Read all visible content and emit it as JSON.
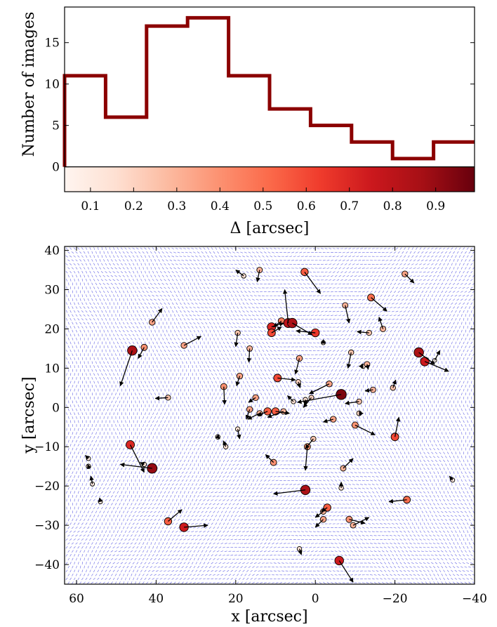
{
  "chart_data": [
    {
      "type": "histogram",
      "ylabel": "Number of images",
      "xlim": [
        0.04,
        0.99
      ],
      "ylim": [
        -3,
        19.3
      ],
      "yticks": [
        "0",
        "5",
        "10",
        "15"
      ],
      "bins": [
        {
          "x0": 0.04,
          "x1": 0.135,
          "count": 11
        },
        {
          "x0": 0.135,
          "x1": 0.23,
          "count": 6
        },
        {
          "x0": 0.23,
          "x1": 0.325,
          "count": 17
        },
        {
          "x0": 0.325,
          "x1": 0.42,
          "count": 18
        },
        {
          "x0": 0.42,
          "x1": 0.515,
          "count": 11
        },
        {
          "x0": 0.515,
          "x1": 0.61,
          "count": 7
        },
        {
          "x0": 0.61,
          "x1": 0.705,
          "count": 5
        },
        {
          "x0": 0.705,
          "x1": 0.8,
          "count": 3
        },
        {
          "x0": 0.8,
          "x1": 0.895,
          "count": 1
        },
        {
          "x0": 0.895,
          "x1": 0.99,
          "count": 3
        }
      ],
      "colorbar": {
        "label": "Δ [arcsec]",
        "ticks": [
          "0.1",
          "0.2",
          "0.3",
          "0.4",
          "0.5",
          "0.6",
          "0.7",
          "0.8",
          "0.9"
        ],
        "colormap": "Reds",
        "range": [
          0.04,
          0.99
        ]
      },
      "line_color": "#8b0000"
    },
    {
      "type": "scatter",
      "xlabel": "x [arcsec]",
      "ylabel": "y [arcsec]",
      "xlim": [
        63,
        -40
      ],
      "ylim": [
        -45,
        41
      ],
      "xticks": [
        "60",
        "40",
        "20",
        "0",
        "−20",
        "−40"
      ],
      "yticks": [
        "40",
        "30",
        "20",
        "10",
        "0",
        "−10",
        "−20",
        "−30",
        "−40"
      ],
      "background_field_color": "#4a4ae0",
      "points": [
        {
          "x": 18,
          "y": 33.5,
          "d": 0.15,
          "dx": 2,
          "dy": 1.5
        },
        {
          "x": 14,
          "y": 35,
          "d": 0.3,
          "dx": 0.6,
          "dy": -3
        },
        {
          "x": 2.7,
          "y": 34.5,
          "d": 0.55,
          "dx": -4,
          "dy": -5.5
        },
        {
          "x": -22.5,
          "y": 34,
          "d": 0.35,
          "dx": -2.3,
          "dy": -2.3
        },
        {
          "x": 41,
          "y": 21.7,
          "d": 0.35,
          "dx": -2.5,
          "dy": 3.5
        },
        {
          "x": 46,
          "y": 14.5,
          "d": 0.85,
          "dx": 3,
          "dy": -9
        },
        {
          "x": 43,
          "y": 15.3,
          "d": 0.4,
          "dx": 1.5,
          "dy": -2.8
        },
        {
          "x": 33,
          "y": 15.8,
          "d": 0.35,
          "dx": -4.3,
          "dy": 2.3
        },
        {
          "x": 19.5,
          "y": 19,
          "d": 0.25,
          "dx": 0.5,
          "dy": -3.5
        },
        {
          "x": 16.5,
          "y": 15,
          "d": 0.3,
          "dx": 0.2,
          "dy": -3.5
        },
        {
          "x": 11,
          "y": 20.5,
          "d": 0.7,
          "dx": -3,
          "dy": 1
        },
        {
          "x": 11,
          "y": 19,
          "d": 0.6,
          "dx": -2.5,
          "dy": 1.5
        },
        {
          "x": 8.5,
          "y": 22,
          "d": 0.45,
          "dx": 2,
          "dy": -1.5
        },
        {
          "x": 6.8,
          "y": 21.5,
          "d": 0.8,
          "dx": 0.9,
          "dy": 8.5
        },
        {
          "x": 5.8,
          "y": 21.5,
          "d": 0.85,
          "dx": -5,
          "dy": -3
        },
        {
          "x": 0,
          "y": 19,
          "d": 0.65,
          "dx": 4.8,
          "dy": 0.5
        },
        {
          "x": -7.5,
          "y": 26,
          "d": 0.3,
          "dx": -1,
          "dy": -4.5
        },
        {
          "x": -14,
          "y": 28,
          "d": 0.5,
          "dx": -4,
          "dy": -3.5
        },
        {
          "x": -13.5,
          "y": 19,
          "d": 0.25,
          "dx": 3,
          "dy": 0.3
        },
        {
          "x": -17,
          "y": 20,
          "d": 0.3,
          "dx": 1,
          "dy": 3
        },
        {
          "x": -2,
          "y": 16.5,
          "d": 0.1,
          "dx": 0,
          "dy": 0.8
        },
        {
          "x": -9,
          "y": 14,
          "d": 0.25,
          "dx": 0.8,
          "dy": -4
        },
        {
          "x": -26,
          "y": 14,
          "d": 0.85,
          "dx": -4,
          "dy": -3
        },
        {
          "x": -27.5,
          "y": 11.7,
          "d": 0.75,
          "dx": -6,
          "dy": -2.5
        },
        {
          "x": -30,
          "y": 12,
          "d": 0.05,
          "dx": -1.3,
          "dy": 2.5
        },
        {
          "x": -12,
          "y": 10.5,
          "d": 0.15,
          "dx": 1,
          "dy": 0
        },
        {
          "x": -13,
          "y": 11,
          "d": 0.3,
          "dx": -0.3,
          "dy": -1.3
        },
        {
          "x": 19,
          "y": 8,
          "d": 0.35,
          "dx": 0.8,
          "dy": -2.5
        },
        {
          "x": 23,
          "y": 5.3,
          "d": 0.4,
          "dx": -0.2,
          "dy": -4.5
        },
        {
          "x": 15,
          "y": 2.5,
          "d": 0.35,
          "dx": 1.8,
          "dy": -1.2
        },
        {
          "x": 37,
          "y": 2.5,
          "d": 0.25,
          "dx": 3.2,
          "dy": -0.2
        },
        {
          "x": 9.5,
          "y": 7.5,
          "d": 0.6,
          "dx": -4.5,
          "dy": -0.5
        },
        {
          "x": 4,
          "y": 12.5,
          "d": 0.35,
          "dx": 1,
          "dy": -4
        },
        {
          "x": 4.3,
          "y": 6.5,
          "d": 0.2,
          "dx": -0.5,
          "dy": -1.5
        },
        {
          "x": -3.5,
          "y": 6,
          "d": 0.35,
          "dx": 5,
          "dy": -2.5
        },
        {
          "x": -14.5,
          "y": 4.5,
          "d": 0.3,
          "dx": 2,
          "dy": -0.3
        },
        {
          "x": -19.5,
          "y": 5,
          "d": 0.25,
          "dx": -0.7,
          "dy": 2
        },
        {
          "x": 5.5,
          "y": 1.5,
          "d": 0.15,
          "dx": 1.5,
          "dy": 1.5
        },
        {
          "x": 2.5,
          "y": 2,
          "d": 0.15,
          "dx": 0,
          "dy": -1.5
        },
        {
          "x": 1,
          "y": 2.5,
          "d": 0.2,
          "dx": 2,
          "dy": -2.5
        },
        {
          "x": -6.5,
          "y": 3.3,
          "d": 0.95,
          "dx": 11,
          "dy": -2
        },
        {
          "x": -11,
          "y": 1.5,
          "d": 0.25,
          "dx": 3.5,
          "dy": -0.5
        },
        {
          "x": 16.5,
          "y": -0.5,
          "d": 0.35,
          "dx": 0.8,
          "dy": -2.5
        },
        {
          "x": 14,
          "y": -1.5,
          "d": 0.3,
          "dx": 3,
          "dy": -1.5
        },
        {
          "x": 12,
          "y": -1,
          "d": 0.55,
          "dx": 2.5,
          "dy": -1
        },
        {
          "x": 10,
          "y": -1,
          "d": 0.55,
          "dx": -3.5,
          "dy": -0.5
        },
        {
          "x": 8,
          "y": -1,
          "d": 0.3,
          "dx": 4,
          "dy": -1.5
        },
        {
          "x": -11,
          "y": -1.5,
          "d": 0.2,
          "dx": -1,
          "dy": 0
        },
        {
          "x": -4.5,
          "y": -3,
          "d": 0.35,
          "dx": 2.5,
          "dy": -0.7
        },
        {
          "x": -10,
          "y": -4.5,
          "d": 0.4,
          "dx": -5,
          "dy": -2.5
        },
        {
          "x": -20,
          "y": -7.5,
          "d": 0.6,
          "dx": -1,
          "dy": 5
        },
        {
          "x": 19.5,
          "y": -5.5,
          "d": 0.15,
          "dx": -0.5,
          "dy": -2.5
        },
        {
          "x": 24.5,
          "y": -7.5,
          "d": 0.15,
          "dx": -0.5,
          "dy": -0.5
        },
        {
          "x": 22.5,
          "y": -10,
          "d": 0.15,
          "dx": 0.6,
          "dy": 1.5
        },
        {
          "x": 0.5,
          "y": -8,
          "d": 0.25,
          "dx": 2,
          "dy": -2.5
        },
        {
          "x": 2,
          "y": -10,
          "d": 0.4,
          "dx": 0.5,
          "dy": -6
        },
        {
          "x": 10.5,
          "y": -14,
          "d": 0.4,
          "dx": 2,
          "dy": 2
        },
        {
          "x": 46.5,
          "y": -9.5,
          "d": 0.7,
          "dx": -3.5,
          "dy": -7
        },
        {
          "x": 41,
          "y": -15.5,
          "d": 0.9,
          "dx": 8,
          "dy": 1
        },
        {
          "x": 43,
          "y": -14.5,
          "d": 0.15,
          "dx": 1,
          "dy": 0.5
        },
        {
          "x": -7,
          "y": -15.5,
          "d": 0.3,
          "dx": -2.5,
          "dy": 2.5
        },
        {
          "x": 57,
          "y": -13,
          "d": 0.1,
          "dx": 0.8,
          "dy": 0.8
        },
        {
          "x": 57,
          "y": -15,
          "d": 0.15,
          "dx": 0.2,
          "dy": 0.5
        },
        {
          "x": 56,
          "y": -19.5,
          "d": 0.1,
          "dx": 0.4,
          "dy": 2
        },
        {
          "x": 54,
          "y": -24,
          "d": 0.1,
          "dx": 0.2,
          "dy": 1
        },
        {
          "x": 2.5,
          "y": -21,
          "d": 0.85,
          "dx": 8,
          "dy": -1
        },
        {
          "x": -6.5,
          "y": -20.5,
          "d": 0.15,
          "dx": 0,
          "dy": 1.5
        },
        {
          "x": -23,
          "y": -23.5,
          "d": 0.5,
          "dx": 4.5,
          "dy": -0.5
        },
        {
          "x": -34.5,
          "y": -18.5,
          "d": 0.1,
          "dx": 0.8,
          "dy": 1
        },
        {
          "x": 37,
          "y": -29,
          "d": 0.55,
          "dx": -3.5,
          "dy": 3
        },
        {
          "x": 33,
          "y": -30.5,
          "d": 0.75,
          "dx": -6,
          "dy": 0.5
        },
        {
          "x": -3,
          "y": -25.5,
          "d": 0.55,
          "dx": 1.5,
          "dy": -1
        },
        {
          "x": -2,
          "y": -26.5,
          "d": 0.3,
          "dx": 2,
          "dy": -1.5
        },
        {
          "x": -2,
          "y": -28.5,
          "d": 0.35,
          "dx": 2,
          "dy": -2
        },
        {
          "x": -8.5,
          "y": -28.5,
          "d": 0.4,
          "dx": -4,
          "dy": -1
        },
        {
          "x": -9.5,
          "y": -30,
          "d": 0.3,
          "dx": -4,
          "dy": 2
        },
        {
          "x": 4,
          "y": -36,
          "d": 0.15,
          "dx": -0.5,
          "dy": -1.5
        },
        {
          "x": -6,
          "y": -39,
          "d": 0.75,
          "dx": -3.5,
          "dy": -5.5
        }
      ]
    }
  ]
}
